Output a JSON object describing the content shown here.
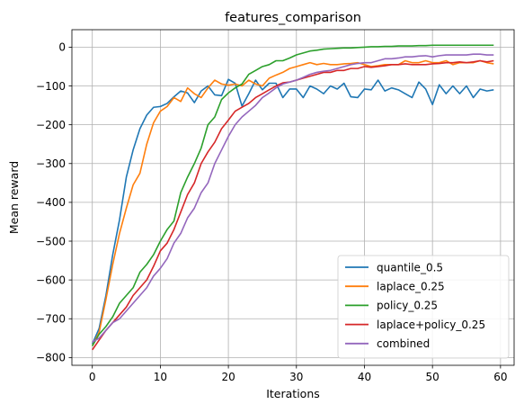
{
  "chart_data": {
    "type": "line",
    "title": "features_comparison",
    "xlabel": "Iterations",
    "ylabel": "Mean reward",
    "xlim": [
      -3,
      62
    ],
    "ylim": [
      -820,
      45
    ],
    "xticks": [
      0,
      10,
      20,
      30,
      40,
      50,
      60
    ],
    "yticks": [
      0,
      -100,
      -200,
      -300,
      -400,
      -500,
      -600,
      -700,
      -800
    ],
    "grid": true,
    "legend_position": "bottom-right",
    "x": [
      0,
      1,
      2,
      3,
      4,
      5,
      6,
      7,
      8,
      9,
      10,
      11,
      12,
      13,
      14,
      15,
      16,
      17,
      18,
      19,
      20,
      21,
      22,
      23,
      24,
      25,
      26,
      27,
      28,
      29,
      30,
      31,
      32,
      33,
      34,
      35,
      36,
      37,
      38,
      39,
      40,
      41,
      42,
      43,
      44,
      45,
      46,
      47,
      48,
      49,
      50,
      51,
      52,
      53,
      54,
      55,
      56,
      57,
      58,
      59
    ],
    "series": [
      {
        "name": "quantile_0.5",
        "color": "#1f77b4",
        "values": [
          -765,
          -725,
          -640,
          -535,
          -445,
          -335,
          -265,
          -210,
          -175,
          -155,
          -153,
          -145,
          -128,
          -113,
          -118,
          -143,
          -113,
          -100,
          -123,
          -125,
          -83,
          -93,
          -152,
          -120,
          -85,
          -110,
          -93,
          -93,
          -130,
          -108,
          -108,
          -130,
          -100,
          -108,
          -120,
          -100,
          -108,
          -93,
          -128,
          -130,
          -108,
          -110,
          -85,
          -113,
          -105,
          -110,
          -120,
          -130,
          -90,
          -108,
          -148,
          -97,
          -120,
          -100,
          -120,
          -100,
          -130,
          -108,
          -113,
          -110
        ]
      },
      {
        "name": "laplace_0.25",
        "color": "#ff7f0e",
        "values": [
          -770,
          -735,
          -650,
          -560,
          -480,
          -415,
          -355,
          -325,
          -250,
          -195,
          -165,
          -153,
          -130,
          -140,
          -105,
          -120,
          -130,
          -105,
          -85,
          -95,
          -98,
          -95,
          -100,
          -85,
          -95,
          -100,
          -80,
          -72,
          -65,
          -55,
          -50,
          -45,
          -40,
          -45,
          -42,
          -45,
          -45,
          -43,
          -42,
          -40,
          -45,
          -50,
          -48,
          -45,
          -45,
          -45,
          -35,
          -40,
          -40,
          -35,
          -40,
          -40,
          -35,
          -45,
          -40,
          -40,
          -40,
          -35,
          -40,
          -43
        ]
      },
      {
        "name": "policy_0.25",
        "color": "#2ca02c",
        "values": [
          -770,
          -740,
          -720,
          -695,
          -660,
          -640,
          -620,
          -580,
          -560,
          -535,
          -500,
          -470,
          -448,
          -375,
          -335,
          -300,
          -260,
          -200,
          -180,
          -135,
          -118,
          -105,
          -95,
          -70,
          -60,
          -50,
          -45,
          -35,
          -35,
          -28,
          -20,
          -15,
          -10,
          -8,
          -5,
          -4,
          -3,
          -2,
          -2,
          -1,
          0,
          1,
          1,
          2,
          2,
          3,
          3,
          3,
          4,
          4,
          5,
          5,
          5,
          5,
          5,
          5,
          5,
          5,
          5,
          5
        ]
      },
      {
        "name": "laplace+policy_0.25",
        "color": "#d62728",
        "values": [
          -780,
          -755,
          -730,
          -710,
          -690,
          -670,
          -640,
          -620,
          -600,
          -565,
          -525,
          -505,
          -470,
          -425,
          -380,
          -350,
          -300,
          -270,
          -245,
          -210,
          -188,
          -165,
          -155,
          -145,
          -130,
          -120,
          -110,
          -100,
          -92,
          -90,
          -85,
          -80,
          -75,
          -70,
          -65,
          -65,
          -60,
          -60,
          -55,
          -55,
          -50,
          -52,
          -50,
          -48,
          -45,
          -45,
          -43,
          -45,
          -45,
          -45,
          -43,
          -42,
          -40,
          -40,
          -38,
          -40,
          -38,
          -35,
          -38,
          -35
        ]
      },
      {
        "name": "combined",
        "color": "#9467bd",
        "values": [
          -760,
          -750,
          -730,
          -710,
          -700,
          -680,
          -660,
          -640,
          -620,
          -590,
          -570,
          -545,
          -505,
          -480,
          -440,
          -415,
          -375,
          -350,
          -300,
          -265,
          -230,
          -200,
          -180,
          -165,
          -150,
          -130,
          -118,
          -105,
          -95,
          -90,
          -85,
          -78,
          -70,
          -65,
          -62,
          -60,
          -55,
          -50,
          -45,
          -42,
          -40,
          -40,
          -35,
          -30,
          -30,
          -28,
          -25,
          -25,
          -23,
          -22,
          -25,
          -22,
          -20,
          -20,
          -20,
          -20,
          -18,
          -18,
          -20,
          -20
        ]
      }
    ]
  }
}
